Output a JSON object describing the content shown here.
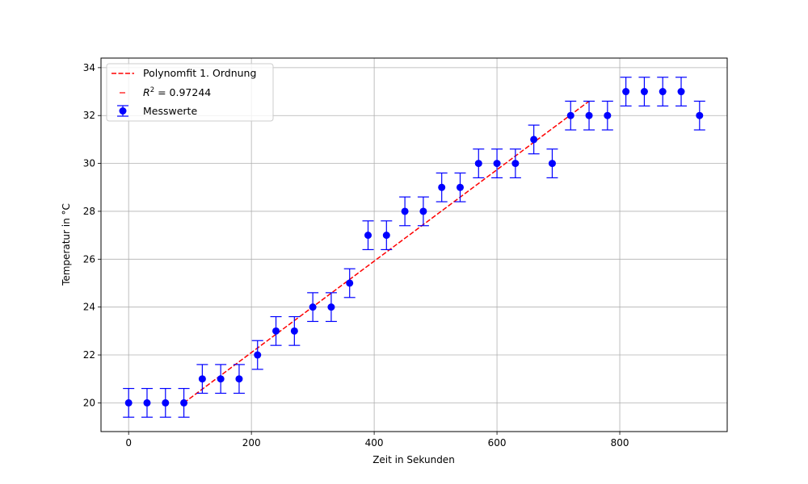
{
  "chart_data": {
    "type": "scatter",
    "title": "",
    "xlabel": "Zeit in Sekunden",
    "ylabel": "Temperatur in °C",
    "xlim": [
      -45,
      975
    ],
    "ylim": [
      18.8,
      34.4
    ],
    "xticks": [
      0,
      200,
      400,
      600,
      800
    ],
    "yticks": [
      20,
      22,
      24,
      26,
      28,
      30,
      32,
      34
    ],
    "grid": true,
    "legend_position": "top-left",
    "series": [
      {
        "name": "Messwerte",
        "kind": "errorbar",
        "color": "#0000ff",
        "x": [
          0,
          30,
          60,
          90,
          120,
          150,
          180,
          210,
          240,
          270,
          300,
          330,
          360,
          390,
          420,
          450,
          480,
          510,
          540,
          570,
          600,
          630,
          660,
          690,
          720,
          750,
          780,
          810,
          840,
          870,
          900,
          930
        ],
        "y": [
          20,
          20,
          20,
          20,
          21,
          21,
          21,
          22,
          23,
          23,
          24,
          24,
          25,
          27,
          27,
          28,
          28,
          29,
          29,
          30,
          30,
          30,
          31,
          30,
          32,
          32,
          32,
          33,
          33,
          33,
          33,
          32
        ],
        "yerr": 0.6
      },
      {
        "name": "Polynomfit 1. Ordnung",
        "kind": "line",
        "style": "dashed",
        "color": "#ff0000",
        "x": [
          90,
          750
        ],
        "y": [
          20.0,
          32.6
        ]
      }
    ],
    "legend": [
      {
        "label": "Polynomfit 1. Ordnung",
        "marker": "dashed-line",
        "color": "#ff0000"
      },
      {
        "label_prefix": "R",
        "label_sup": "2",
        "label_suffix": " = 0.97244",
        "marker": "short-dash",
        "color": "#ff0000"
      },
      {
        "label": "Messwerte",
        "marker": "errorbar-point",
        "color": "#0000ff"
      }
    ]
  }
}
